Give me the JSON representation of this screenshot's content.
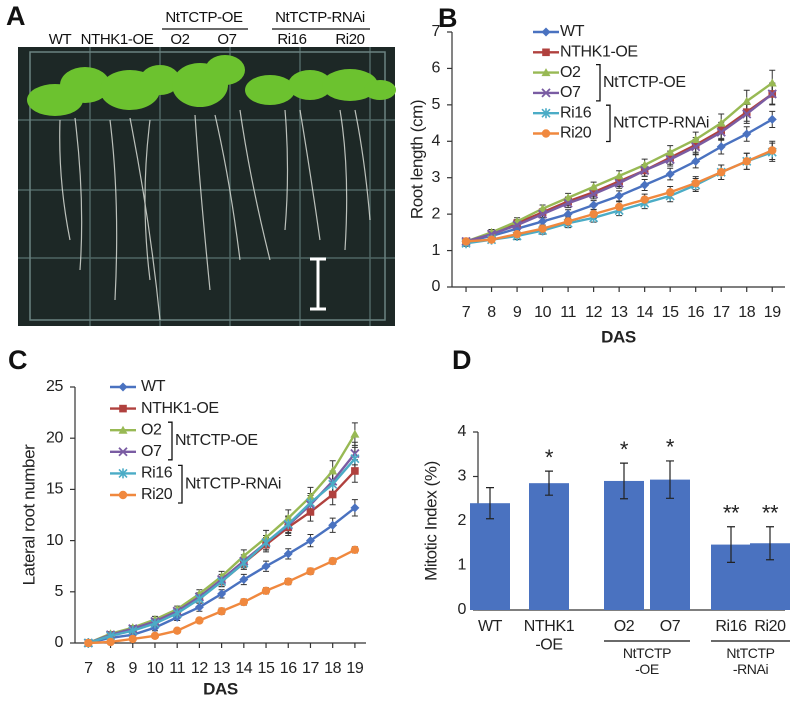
{
  "photo": {
    "panel_label": "A",
    "labels": [
      "WT",
      "NTHK1-OE",
      "O2",
      "O7",
      "Ri16",
      "Ri20"
    ],
    "groups": [
      "NtTCTP-OE",
      "NtTCTP-RNAi"
    ]
  },
  "chart_data": [
    {
      "type": "line",
      "panel_label": "B",
      "xlabel": "DAS",
      "ylabel": "Root  length (cm)",
      "x": [
        7,
        8,
        9,
        10,
        11,
        12,
        13,
        14,
        15,
        16,
        17,
        18,
        19
      ],
      "xlim": [
        6.45,
        19.5
      ],
      "xticks": [
        7,
        8,
        9,
        10,
        11,
        12,
        13,
        14,
        15,
        16,
        17,
        18,
        19
      ],
      "ylim": [
        0,
        7
      ],
      "yticks": [
        0,
        1,
        2,
        3,
        4,
        5,
        6,
        7
      ],
      "legend_groups": [
        "NtTCTP-OE",
        "NtTCTP-RNAi"
      ],
      "series": [
        {
          "name": "WT",
          "color": "#4a72c0",
          "marker": "diamond",
          "values": [
            1.25,
            1.4,
            1.6,
            1.8,
            2.0,
            2.25,
            2.5,
            2.8,
            3.1,
            3.45,
            3.85,
            4.2,
            4.6
          ],
          "errors": [
            0.08,
            0.08,
            0.1,
            0.1,
            0.12,
            0.12,
            0.14,
            0.15,
            0.16,
            0.18,
            0.2,
            0.2,
            0.22
          ]
        },
        {
          "name": "NTHK1-OE",
          "color": "#b0413e",
          "marker": "square",
          "values": [
            1.25,
            1.45,
            1.75,
            2.05,
            2.35,
            2.6,
            2.9,
            3.2,
            3.55,
            3.9,
            4.3,
            4.8,
            5.3
          ],
          "errors": [
            0.08,
            0.08,
            0.1,
            0.1,
            0.12,
            0.13,
            0.14,
            0.16,
            0.18,
            0.2,
            0.22,
            0.25,
            0.28
          ]
        },
        {
          "name": "O2",
          "color": "#98b954",
          "marker": "triangle",
          "values": [
            1.25,
            1.5,
            1.8,
            2.15,
            2.45,
            2.75,
            3.05,
            3.35,
            3.7,
            4.05,
            4.5,
            5.1,
            5.6
          ],
          "errors": [
            0.08,
            0.08,
            0.1,
            0.1,
            0.12,
            0.13,
            0.14,
            0.16,
            0.18,
            0.2,
            0.25,
            0.3,
            0.35
          ]
        },
        {
          "name": "O7",
          "color": "#7a5ca3",
          "marker": "cross",
          "values": [
            1.25,
            1.45,
            1.7,
            2.0,
            2.3,
            2.55,
            2.85,
            3.2,
            3.5,
            3.85,
            4.25,
            4.75,
            5.3
          ],
          "errors": [
            0.08,
            0.08,
            0.1,
            0.1,
            0.12,
            0.13,
            0.14,
            0.16,
            0.18,
            0.2,
            0.22,
            0.26,
            0.3
          ]
        },
        {
          "name": "Ri16",
          "color": "#4bacc6",
          "marker": "star",
          "values": [
            1.2,
            1.3,
            1.4,
            1.55,
            1.75,
            1.9,
            2.1,
            2.3,
            2.5,
            2.8,
            3.15,
            3.45,
            3.7
          ],
          "errors": [
            0.08,
            0.08,
            0.1,
            0.1,
            0.12,
            0.12,
            0.14,
            0.15,
            0.16,
            0.18,
            0.2,
            0.22,
            0.25
          ]
        },
        {
          "name": "Ri20",
          "color": "#f0883e",
          "marker": "circle",
          "values": [
            1.25,
            1.3,
            1.45,
            1.6,
            1.8,
            2.0,
            2.2,
            2.4,
            2.6,
            2.85,
            3.15,
            3.45,
            3.75
          ],
          "errors": [
            0.08,
            0.08,
            0.1,
            0.1,
            0.12,
            0.12,
            0.14,
            0.15,
            0.16,
            0.18,
            0.2,
            0.22,
            0.25
          ]
        }
      ]
    },
    {
      "type": "line",
      "panel_label": "C",
      "xlabel": "DAS",
      "ylabel": "Lateral root number",
      "x": [
        7,
        8,
        9,
        10,
        11,
        12,
        13,
        14,
        15,
        16,
        17,
        18,
        19
      ],
      "xlim": [
        6.4,
        19.5
      ],
      "xticks": [
        7,
        8,
        9,
        10,
        11,
        12,
        13,
        14,
        15,
        16,
        17,
        18,
        19
      ],
      "ylim": [
        0,
        25
      ],
      "yticks": [
        0,
        5,
        10,
        15,
        20,
        25
      ],
      "legend_groups": [
        "NtTCTP-OE",
        "NtTCTP-RNAi"
      ],
      "series": [
        {
          "name": "WT",
          "color": "#4a72c0",
          "marker": "diamond",
          "values": [
            0,
            0.5,
            0.8,
            1.5,
            2.5,
            3.5,
            4.8,
            6.2,
            7.5,
            8.7,
            10,
            11.5,
            13.2
          ],
          "errors": [
            0.1,
            0.2,
            0.2,
            0.3,
            0.3,
            0.4,
            0.4,
            0.5,
            0.5,
            0.5,
            0.6,
            0.7,
            0.8
          ]
        },
        {
          "name": "NTHK1-OE",
          "color": "#b0413e",
          "marker": "square",
          "values": [
            0,
            0.8,
            1.3,
            2.0,
            3.0,
            4.5,
            6.0,
            7.8,
            9.6,
            11.3,
            12.8,
            14.5,
            16.8
          ],
          "errors": [
            0.1,
            0.2,
            0.2,
            0.3,
            0.3,
            0.4,
            0.5,
            0.6,
            0.7,
            0.8,
            0.9,
            1.0,
            1.1
          ]
        },
        {
          "name": "O2",
          "color": "#98b954",
          "marker": "triangle",
          "values": [
            0,
            0.9,
            1.5,
            2.3,
            3.3,
            4.8,
            6.5,
            8.5,
            10.3,
            12.2,
            14.3,
            16.8,
            20.4
          ],
          "errors": [
            0.1,
            0.2,
            0.2,
            0.3,
            0.3,
            0.4,
            0.5,
            0.6,
            0.7,
            0.8,
            0.9,
            1.0,
            1.1
          ]
        },
        {
          "name": "O7",
          "color": "#7a5ca3",
          "marker": "cross",
          "values": [
            0,
            0.8,
            1.4,
            2.1,
            3.1,
            4.5,
            6.2,
            8.0,
            9.8,
            11.5,
            13.5,
            15.8,
            18.5
          ],
          "errors": [
            0.1,
            0.2,
            0.2,
            0.3,
            0.3,
            0.4,
            0.5,
            0.6,
            0.7,
            0.8,
            0.9,
            1.0,
            1.1
          ]
        },
        {
          "name": "Ri16",
          "color": "#4bacc6",
          "marker": "star",
          "values": [
            0,
            0.7,
            1.2,
            1.9,
            2.9,
            4.3,
            6.0,
            7.8,
            9.8,
            11.6,
            13.7,
            15.5,
            18.0
          ],
          "errors": [
            0.1,
            0.2,
            0.2,
            0.3,
            0.3,
            0.4,
            0.5,
            0.6,
            0.7,
            0.8,
            0.9,
            1.0,
            1.1
          ]
        },
        {
          "name": "Ri20",
          "color": "#f0883e",
          "marker": "circle",
          "values": [
            0,
            0.1,
            0.4,
            0.7,
            1.2,
            2.2,
            3.1,
            4.0,
            5.1,
            6.0,
            7.0,
            8.0,
            9.1
          ],
          "errors": [
            0.1,
            0.1,
            0.1,
            0.2,
            0.2,
            0.2,
            0.3,
            0.3,
            0.3,
            0.3,
            0.3,
            0.3,
            0.3
          ]
        }
      ]
    },
    {
      "type": "bar",
      "panel_label": "D",
      "ylabel": "Mitotic Index (%)",
      "color": "#4a72c0",
      "categories": [
        "WT",
        "NTHK1\n-OE",
        "O2",
        "O7",
        "Ri16",
        "Ri20"
      ],
      "values": [
        2.4,
        2.85,
        2.9,
        2.93,
        1.47,
        1.5
      ],
      "errors": [
        0.35,
        0.27,
        0.4,
        0.42,
        0.4,
        0.37
      ],
      "significance": [
        null,
        "*",
        "*",
        "*",
        "**",
        "**"
      ],
      "groups": [
        "NtTCTP\n-OE",
        "NtTCTP\n-RNAi"
      ],
      "ylim": [
        0,
        4
      ],
      "yticks": [
        0,
        1,
        2,
        3,
        4
      ]
    }
  ]
}
